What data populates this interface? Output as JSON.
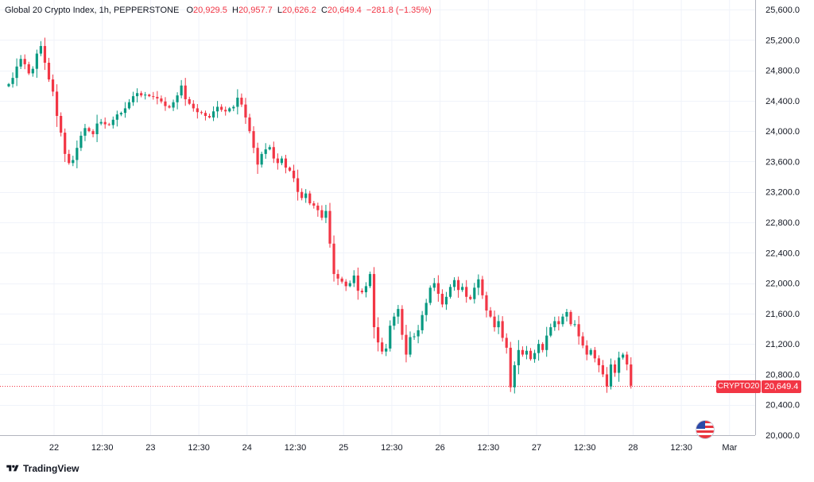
{
  "legend": {
    "title": "Global 20 Crypto Index, 1h, PEPPERSTONE",
    "o_label": "O",
    "o_value": "20,929.5",
    "h_label": "H",
    "h_value": "20,957.7",
    "l_label": "L",
    "l_value": "20,626.2",
    "c_label": "C",
    "c_value": "20,649.4",
    "change": "−281.8 (−1.35%)"
  },
  "price_tag": {
    "symbol": "CRYPTO20",
    "value": "20,649.4"
  },
  "brand": {
    "name": "TradingView"
  },
  "colors": {
    "up": "#089981",
    "down": "#f23645",
    "grid": "#f0f3fa",
    "axis_text": "#131722"
  },
  "chart_data": {
    "type": "candlestick",
    "timeframe": "1h",
    "y_range": [
      20000,
      25600
    ],
    "y_ticks": [
      20000,
      20400,
      20800,
      21200,
      21600,
      22000,
      22400,
      22800,
      23200,
      23600,
      24000,
      24400,
      24800,
      25200,
      25600
    ],
    "y_tick_labels": [
      "20,000.0",
      "20,400.0",
      "20,800.0",
      "21,200.0",
      "21,600.0",
      "22,000.0",
      "22,400.0",
      "22,800.0",
      "23,200.0",
      "23,600.0",
      "24,000.0",
      "24,400.0",
      "24,800.0",
      "25,200.0",
      "25,600.0"
    ],
    "x_tick_labels": [
      "22",
      "12:30",
      "23",
      "12:30",
      "24",
      "12:30",
      "25",
      "12:30",
      "26",
      "12:30",
      "27",
      "12:30",
      "28",
      "12:30",
      "Mar"
    ],
    "last_price": 20649.4,
    "grid": true,
    "closes": [
      24620,
      24700,
      24850,
      24950,
      24880,
      24760,
      24820,
      25020,
      25120,
      24900,
      24680,
      24520,
      24200,
      23980,
      23700,
      23580,
      23620,
      23780,
      23940,
      24040,
      24000,
      23960,
      24100,
      24120,
      24090,
      24080,
      24150,
      24220,
      24240,
      24300,
      24380,
      24460,
      24500,
      24470,
      24480,
      24460,
      24450,
      24430,
      24390,
      24330,
      24310,
      24380,
      24470,
      24600,
      24420,
      24360,
      24300,
      24250,
      24240,
      24200,
      24180,
      24260,
      24320,
      24280,
      24260,
      24300,
      24320,
      24440,
      24350,
      24180,
      24000,
      23780,
      23560,
      23700,
      23760,
      23790,
      23640,
      23580,
      23640,
      23520,
      23480,
      23380,
      23200,
      23120,
      23180,
      23050,
      23020,
      22960,
      22860,
      22950,
      22520,
      22120,
      22060,
      22020,
      21960,
      22000,
      22100,
      21900,
      21880,
      21960,
      22120,
      21420,
      21220,
      21100,
      21140,
      21440,
      21560,
      21660,
      21320,
      21060,
      21290,
      21300,
      21380,
      21580,
      21740,
      21940,
      22000,
      21860,
      21720,
      21820,
      21950,
      22040,
      21910,
      21950,
      21820,
      21790,
      21940,
      22050,
      21840,
      21640,
      21560,
      21420,
      21500,
      21280,
      21150,
      20630,
      20920,
      21120,
      21060,
      21110,
      21000,
      21080,
      21200,
      21120,
      21310,
      21420,
      21500,
      21460,
      21560,
      21620,
      21460,
      21460,
      21300,
      21180,
      21060,
      21120,
      21010,
      20920,
      20800,
      20640,
      20930,
      20820,
      21020,
      21060,
      20930,
      20650
    ]
  }
}
